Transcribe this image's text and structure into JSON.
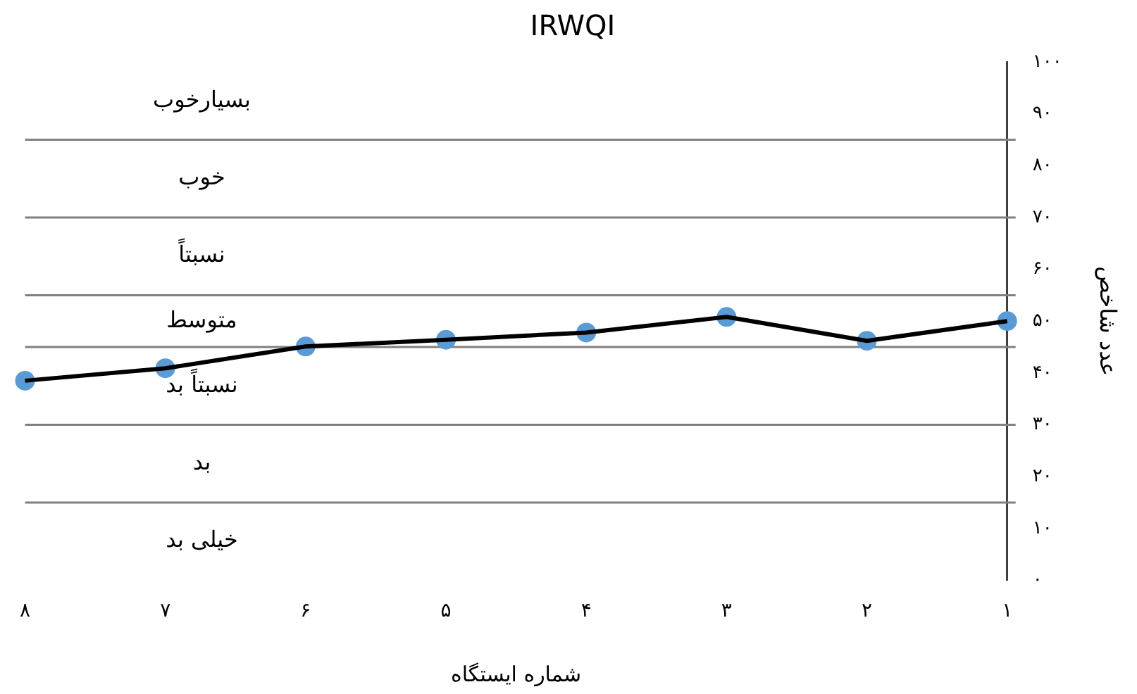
{
  "chart_data": {
    "type": "line",
    "title": "IRWQI",
    "xlabel": "شماره ایستگاه",
    "ylabel": "عدد شاخص",
    "categories": [
      "۸",
      "۷",
      "۶",
      "۵",
      "۴",
      "۳",
      "۲",
      "۱"
    ],
    "series": [
      {
        "marker": "none",
        "color": "#000000",
        "values": [
          38.5,
          40.9,
          45.1,
          46.4,
          47.8,
          50.8,
          46.2,
          50.0
        ]
      },
      {
        "type": "scatter",
        "color": "#5b9bd5",
        "values": [
          38.5,
          40.9,
          45.1,
          46.4,
          47.8,
          50.8,
          46.2,
          50.0
        ]
      }
    ],
    "marker": "circle",
    "line_style": "solid",
    "ylim": [
      0,
      100
    ],
    "yticks": [
      {
        "value": 0,
        "label": "۰"
      },
      {
        "value": 10,
        "label": "۱۰"
      },
      {
        "value": 20,
        "label": "۲۰"
      },
      {
        "value": 30,
        "label": "۳۰"
      },
      {
        "value": 40,
        "label": "۴۰"
      },
      {
        "value": 50,
        "label": "۵۰"
      },
      {
        "value": 60,
        "label": "۶۰"
      },
      {
        "value": 70,
        "label": "۷۰"
      },
      {
        "value": 80,
        "label": "۸۰"
      },
      {
        "value": 90,
        "label": "۹۰"
      },
      {
        "value": 100,
        "label": "۱۰۰"
      }
    ],
    "ref_lines": [
      {
        "axis": "y",
        "value": 85,
        "color": "#808080"
      },
      {
        "axis": "y",
        "value": 70,
        "color": "#808080"
      },
      {
        "axis": "y",
        "value": 55,
        "color": "#808080"
      },
      {
        "axis": "y",
        "value": 45,
        "color": "#808080"
      },
      {
        "axis": "y",
        "value": 30,
        "color": "#808080"
      },
      {
        "axis": "y",
        "value": 15,
        "color": "#808080"
      }
    ],
    "annotations": [
      "بسیارخوب",
      "خوب",
      "نسبتاً",
      "متوسط",
      "نسبتاً بد",
      "بد",
      "خیلی بد"
    ],
    "grid": false,
    "legend": false
  }
}
